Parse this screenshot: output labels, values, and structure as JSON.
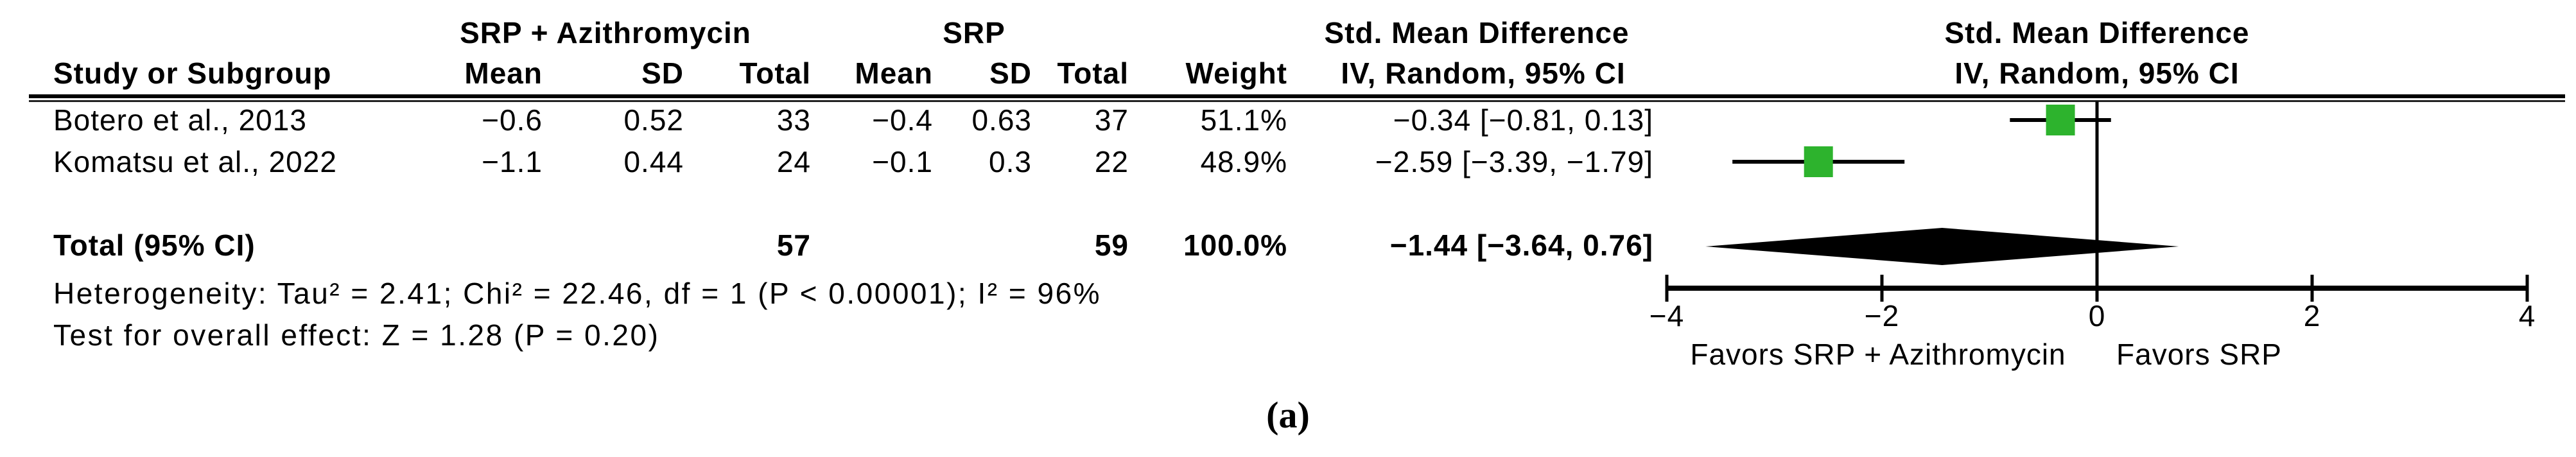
{
  "header": {
    "group_experimental": "SRP + Azithromycin",
    "group_control": "SRP",
    "group_effect": "Std. Mean Difference",
    "col_study": "Study or Subgroup",
    "col_mean": "Mean",
    "col_sd": "SD",
    "col_total": "Total",
    "col_weight": "Weight",
    "col_ci": "IV, Random, 95% CI"
  },
  "table": {
    "rows": [
      {
        "study": "Botero et al., 2013",
        "mean1": "−0.6",
        "sd1": "0.52",
        "total1": "33",
        "mean2": "−0.4",
        "sd2": "0.63",
        "total2": "37",
        "weight": "51.1%",
        "ci_text": "−0.34 [−0.81, 0.13]"
      },
      {
        "study": "Komatsu et al., 2022",
        "mean1": "−1.1",
        "sd1": "0.44",
        "total1": "24",
        "mean2": "−0.1",
        "sd2": "0.3",
        "total2": "22",
        "weight": "48.9%",
        "ci_text": "−2.59 [−3.39, −1.79]"
      }
    ],
    "total_row": {
      "label": "Total (95% CI)",
      "total1": "57",
      "total2": "59",
      "weight": "100.0%",
      "ci_text": "−1.44 [−3.64, 0.76]"
    }
  },
  "footnotes": {
    "heterogeneity": "Heterogeneity: Tau² = 2.41; Chi² = 22.46, df = 1 (P < 0.00001); I² = 96%",
    "overall_effect": "Test for overall effect: Z = 1.28 (P = 0.20)"
  },
  "caption": "(a)",
  "colors": {
    "marker_green": "#2db32d",
    "line_black": "#000000"
  },
  "chart_data": {
    "type": "forest",
    "effect_measure": "Std. Mean Difference",
    "model": "IV, Random, 95% CI",
    "x_axis": {
      "range": [
        -4,
        4
      ],
      "ticks": [
        -4,
        -2,
        0,
        2,
        4
      ],
      "label_left": "Favors SRP + Azithromycin",
      "label_right": "Favors SRP"
    },
    "studies": [
      {
        "name": "Botero et al., 2013",
        "exp_mean": -0.6,
        "exp_sd": 0.52,
        "exp_total": 33,
        "ctrl_mean": -0.4,
        "ctrl_sd": 0.63,
        "ctrl_total": 37,
        "weight_pct": 51.1,
        "smd": -0.34,
        "ci_low": -0.81,
        "ci_high": 0.13
      },
      {
        "name": "Komatsu et al., 2022",
        "exp_mean": -1.1,
        "exp_sd": 0.44,
        "exp_total": 24,
        "ctrl_mean": -0.1,
        "ctrl_sd": 0.3,
        "ctrl_total": 22,
        "weight_pct": 48.9,
        "smd": -2.59,
        "ci_low": -3.39,
        "ci_high": -1.79
      }
    ],
    "total": {
      "label": "Total (95% CI)",
      "exp_total": 57,
      "ctrl_total": 59,
      "weight_pct": 100.0,
      "smd": -1.44,
      "ci_low": -3.64,
      "ci_high": 0.76
    },
    "heterogeneity": {
      "tau2": 2.41,
      "chi2": 22.46,
      "df": 1,
      "p": "< 0.00001",
      "i2_pct": 96
    },
    "overall_effect": {
      "z": 1.28,
      "p": 0.2
    }
  }
}
